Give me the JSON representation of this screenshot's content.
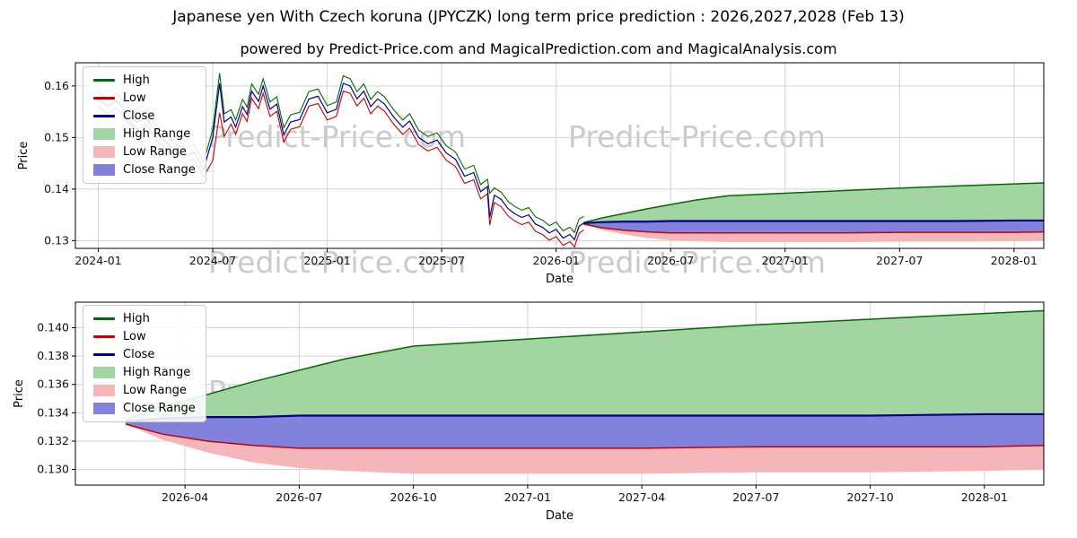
{
  "title": "Japanese yen With Czech koruna (JPYCZK) long term price prediction : 2026,2027,2028 (Feb 13)",
  "subtitle": "powered by Predict-Price.com and MagicalPrediction.com and MagicalAnalysis.com",
  "watermark": "Predict-Price.com",
  "colors": {
    "high": "#006b00",
    "low": "#c40000",
    "close": "#00008b",
    "high_range": "#a2d5a2",
    "low_range": "#f5b6ba",
    "close_range": "#8282dd",
    "grid": "#d3d3d3",
    "spine": "#000000",
    "tick_text": "#111111"
  },
  "legend": {
    "items": [
      {
        "label": "High",
        "swatch": "line",
        "color": "high"
      },
      {
        "label": "Low",
        "swatch": "line",
        "color": "low"
      },
      {
        "label": "Close",
        "swatch": "line",
        "color": "close"
      },
      {
        "label": "High Range",
        "swatch": "patch",
        "color": "high_range"
      },
      {
        "label": "Low Range",
        "swatch": "patch",
        "color": "low_range"
      },
      {
        "label": "Close Range",
        "swatch": "patch",
        "color": "close_range"
      }
    ]
  },
  "chart_data": {
    "type": "line",
    "title": "Japanese yen With Czech koruna (JPYCZK) long term price prediction : 2026,2027,2028 (Feb 13)",
    "charts": [
      {
        "name": "history-and-forecast",
        "xlabel": "Date",
        "ylabel": "Price",
        "xlim": [
          2023.9,
          2028.13
        ],
        "ylim": [
          0.1285,
          0.1645
        ],
        "grid": true,
        "legend_position": "upper-left",
        "xticks": [
          {
            "v": 2024.0,
            "label": "2024-01"
          },
          {
            "v": 2024.5,
            "label": "2024-07"
          },
          {
            "v": 2025.0,
            "label": "2025-01"
          },
          {
            "v": 2025.5,
            "label": "2025-07"
          },
          {
            "v": 2026.0,
            "label": "2026-01"
          },
          {
            "v": 2026.5,
            "label": "2026-07"
          },
          {
            "v": 2027.0,
            "label": "2027-01"
          },
          {
            "v": 2027.5,
            "label": "2027-07"
          },
          {
            "v": 2028.0,
            "label": "2028-01"
          }
        ],
        "yticks": [
          {
            "v": 0.13,
            "label": "0.13"
          },
          {
            "v": 0.14,
            "label": "0.14"
          },
          {
            "v": 0.15,
            "label": "0.15"
          },
          {
            "v": 0.16,
            "label": "0.16"
          }
        ],
        "series": [
          "historical",
          "prediction"
        ]
      },
      {
        "name": "forecast-detail",
        "xlabel": "Date",
        "ylabel": "Price",
        "xlim": [
          2026.01,
          2028.13
        ],
        "ylim": [
          0.1289,
          0.1418
        ],
        "grid": true,
        "legend_position": "upper-left",
        "xticks": [
          {
            "v": 2026.25,
            "label": "2026-04"
          },
          {
            "v": 2026.5,
            "label": "2026-07"
          },
          {
            "v": 2026.75,
            "label": "2026-10"
          },
          {
            "v": 2027.0,
            "label": "2027-01"
          },
          {
            "v": 2027.25,
            "label": "2027-04"
          },
          {
            "v": 2027.5,
            "label": "2027-07"
          },
          {
            "v": 2027.75,
            "label": "2027-10"
          },
          {
            "v": 2028.0,
            "label": "2028-01"
          }
        ],
        "yticks": [
          {
            "v": 0.13,
            "label": "0.130"
          },
          {
            "v": 0.132,
            "label": "0.132"
          },
          {
            "v": 0.134,
            "label": "0.134"
          },
          {
            "v": 0.136,
            "label": "0.136"
          },
          {
            "v": 0.138,
            "label": "0.138"
          },
          {
            "v": 0.14,
            "label": "0.140"
          }
        ],
        "series": [
          "prediction"
        ]
      }
    ],
    "historical": {
      "x": [
        2024.0,
        2024.04,
        2024.08,
        2024.13,
        2024.17,
        2024.21,
        2024.25,
        2024.29,
        2024.33,
        2024.38,
        2024.42,
        2024.46,
        2024.5,
        2024.53,
        2024.55,
        2024.58,
        2024.6,
        2024.63,
        2024.65,
        2024.67,
        2024.7,
        2024.72,
        2024.75,
        2024.78,
        2024.81,
        2024.84,
        2024.88,
        2024.92,
        2024.96,
        2025.0,
        2025.04,
        2025.07,
        2025.1,
        2025.13,
        2025.16,
        2025.19,
        2025.22,
        2025.25,
        2025.29,
        2025.33,
        2025.36,
        2025.4,
        2025.44,
        2025.48,
        2025.52,
        2025.56,
        2025.6,
        2025.64,
        2025.67,
        2025.7,
        2025.71,
        2025.73,
        2025.76,
        2025.79,
        2025.82,
        2025.85,
        2025.88,
        2025.91,
        2025.94,
        2025.97,
        2026.0,
        2026.03,
        2026.06,
        2026.08,
        2026.1,
        2026.12
      ],
      "high": [
        0.1589,
        0.1574,
        0.1586,
        0.1559,
        0.1544,
        0.1554,
        0.1524,
        0.1508,
        0.1489,
        0.1478,
        0.1486,
        0.1452,
        0.1516,
        0.1625,
        0.1546,
        0.1554,
        0.1534,
        0.1574,
        0.1559,
        0.1604,
        0.1584,
        0.1614,
        0.1569,
        0.1579,
        0.1519,
        0.1544,
        0.1549,
        0.1589,
        0.1594,
        0.1562,
        0.1569,
        0.162,
        0.1614,
        0.1589,
        0.1604,
        0.1574,
        0.1589,
        0.1579,
        0.1554,
        0.1534,
        0.1546,
        0.1514,
        0.1502,
        0.1509,
        0.1484,
        0.1472,
        0.1439,
        0.1446,
        0.1409,
        0.1419,
        0.1392,
        0.1402,
        0.1394,
        0.1376,
        0.1366,
        0.1359,
        0.1364,
        0.1346,
        0.134,
        0.1329,
        0.1336,
        0.1319,
        0.1326,
        0.1316,
        0.1342,
        0.1347
      ],
      "low": [
        0.1561,
        0.1546,
        0.1558,
        0.1531,
        0.1516,
        0.1526,
        0.1496,
        0.148,
        0.1461,
        0.145,
        0.1458,
        0.1424,
        0.1455,
        0.1548,
        0.1502,
        0.1526,
        0.1506,
        0.1546,
        0.1531,
        0.1576,
        0.1556,
        0.1586,
        0.1541,
        0.1551,
        0.1491,
        0.1516,
        0.1521,
        0.1561,
        0.1566,
        0.1534,
        0.1541,
        0.159,
        0.1586,
        0.1561,
        0.1576,
        0.1546,
        0.1561,
        0.1551,
        0.1526,
        0.1506,
        0.1518,
        0.1486,
        0.1474,
        0.1481,
        0.1456,
        0.1444,
        0.1411,
        0.1418,
        0.1381,
        0.1391,
        0.133,
        0.1374,
        0.1366,
        0.1348,
        0.1338,
        0.1331,
        0.1336,
        0.1318,
        0.1312,
        0.1301,
        0.1308,
        0.1291,
        0.1298,
        0.1288,
        0.1314,
        0.1321
      ],
      "close": [
        0.1575,
        0.156,
        0.1572,
        0.1545,
        0.153,
        0.154,
        0.151,
        0.1494,
        0.1475,
        0.1464,
        0.1472,
        0.1438,
        0.15,
        0.1605,
        0.153,
        0.154,
        0.152,
        0.156,
        0.1545,
        0.159,
        0.157,
        0.16,
        0.1555,
        0.1565,
        0.1505,
        0.153,
        0.1535,
        0.1575,
        0.158,
        0.1548,
        0.1555,
        0.1605,
        0.16,
        0.1575,
        0.159,
        0.156,
        0.1575,
        0.1565,
        0.154,
        0.152,
        0.1532,
        0.15,
        0.1488,
        0.1495,
        0.147,
        0.1458,
        0.1425,
        0.1432,
        0.1395,
        0.1405,
        0.1345,
        0.1388,
        0.138,
        0.1362,
        0.1352,
        0.1345,
        0.135,
        0.1332,
        0.1326,
        0.1315,
        0.1322,
        0.1305,
        0.1312,
        0.1302,
        0.1328,
        0.1334
      ]
    },
    "prediction": {
      "x": [
        2026.12,
        2026.2,
        2026.3,
        2026.4,
        2026.5,
        2026.6,
        2026.75,
        2027.0,
        2027.25,
        2027.5,
        2027.75,
        2028.0,
        2028.13
      ],
      "high": [
        0.1335,
        0.1344,
        0.1353,
        0.1362,
        0.137,
        0.1378,
        0.1387,
        0.1392,
        0.1397,
        0.1402,
        0.1406,
        0.141,
        0.1412
      ],
      "close": [
        0.1334,
        0.1336,
        0.1337,
        0.1337,
        0.1338,
        0.1338,
        0.1338,
        0.1338,
        0.1338,
        0.1338,
        0.1338,
        0.1339,
        0.1339
      ],
      "low": [
        0.1332,
        0.1325,
        0.132,
        0.1317,
        0.1315,
        0.1315,
        0.1315,
        0.1315,
        0.1315,
        0.1316,
        0.1316,
        0.1316,
        0.1317
      ],
      "low_range_high": [
        0.1332,
        0.1328,
        0.1324,
        0.1322,
        0.1321,
        0.132,
        0.132,
        0.132,
        0.132,
        0.132,
        0.1321,
        0.1321,
        0.1321
      ],
      "low_range_low": [
        0.1332,
        0.1321,
        0.1312,
        0.1305,
        0.1301,
        0.1299,
        0.1297,
        0.1297,
        0.1297,
        0.1298,
        0.1298,
        0.1299,
        0.13
      ]
    }
  }
}
